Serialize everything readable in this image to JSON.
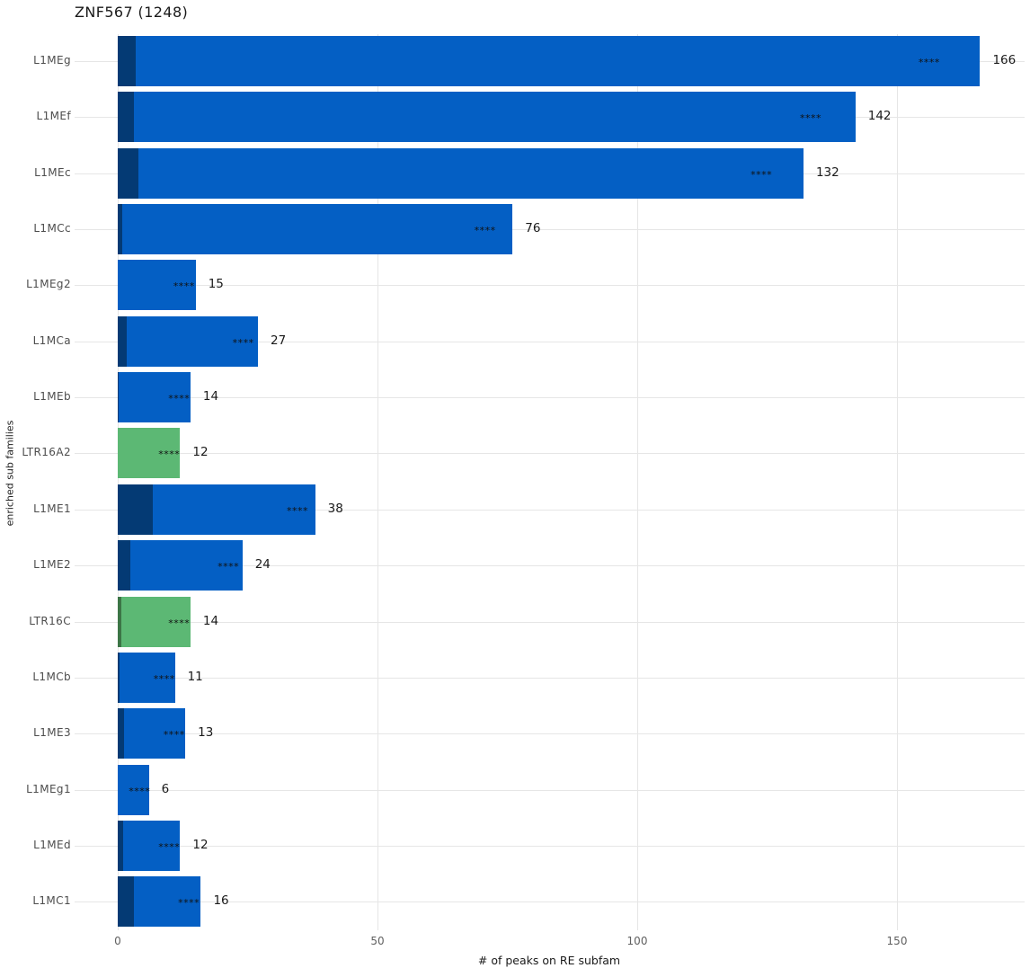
{
  "chart_data": {
    "type": "bar",
    "orientation": "horizontal",
    "title": "ZNF567 (1248)",
    "xlabel": "# of peaks on RE subfam",
    "ylabel": "enriched sub families",
    "xlim": [
      0,
      175
    ],
    "xticks": [
      0,
      50,
      100,
      150
    ],
    "grid": true,
    "legend": "none",
    "significance_marker": "****",
    "categories": [
      "L1MEg",
      "L1MEf",
      "L1MEc",
      "L1MCc",
      "L1MEg2",
      "L1MCa",
      "L1MEb",
      "LTR16A2",
      "L1ME1",
      "L1ME2",
      "LTR16C",
      "L1MCb",
      "L1ME3",
      "L1MEg1",
      "L1MEd",
      "L1MC1"
    ],
    "bars": [
      {
        "label": "L1MEg",
        "value": 166,
        "dark_value": 3.5,
        "color": "blue",
        "sig": "****",
        "value_label": "166"
      },
      {
        "label": "L1MEf",
        "value": 142,
        "dark_value": 3.1,
        "color": "blue",
        "sig": "****",
        "value_label": "142"
      },
      {
        "label": "L1MEc",
        "value": 132,
        "dark_value": 4.0,
        "color": "blue",
        "sig": "****",
        "value_label": "132"
      },
      {
        "label": "L1MCc",
        "value": 76,
        "dark_value": 0.9,
        "color": "blue",
        "sig": "****",
        "value_label": "76"
      },
      {
        "label": "L1MEg2",
        "value": 15,
        "dark_value": 0,
        "color": "blue",
        "sig": "****",
        "value_label": "15"
      },
      {
        "label": "L1MCa",
        "value": 27,
        "dark_value": 1.7,
        "color": "blue",
        "sig": "****",
        "value_label": "27"
      },
      {
        "label": "L1MEb",
        "value": 14,
        "dark_value": 0.25,
        "color": "blue",
        "sig": "****",
        "value_label": "14"
      },
      {
        "label": "LTR16A2",
        "value": 12,
        "dark_value": 0,
        "color": "green",
        "sig": "****",
        "value_label": "12"
      },
      {
        "label": "L1ME1",
        "value": 38,
        "dark_value": 6.7,
        "color": "blue",
        "sig": "****",
        "value_label": "38"
      },
      {
        "label": "L1ME2",
        "value": 24,
        "dark_value": 2.4,
        "color": "blue",
        "sig": "****",
        "value_label": "24"
      },
      {
        "label": "LTR16C",
        "value": 14,
        "dark_value": 0.7,
        "color": "green",
        "sig": "****",
        "value_label": "14"
      },
      {
        "label": "L1MCb",
        "value": 11,
        "dark_value": 0.35,
        "color": "blue",
        "sig": "****",
        "value_label": "11"
      },
      {
        "label": "L1ME3",
        "value": 13,
        "dark_value": 1.2,
        "color": "blue",
        "sig": "****",
        "value_label": "13"
      },
      {
        "label": "L1MEg1",
        "value": 6,
        "dark_value": 0,
        "color": "blue",
        "sig": "****",
        "value_label": "6"
      },
      {
        "label": "L1MEd",
        "value": 12,
        "dark_value": 1.1,
        "color": "blue",
        "sig": "****",
        "value_label": "12"
      },
      {
        "label": "L1MC1",
        "value": 16,
        "dark_value": 3.2,
        "color": "blue",
        "sig": "****",
        "value_label": "16"
      }
    ],
    "colors": {
      "bar_blue": "#045fc4",
      "bar_blue_dark": "#043a74",
      "bar_green": "#5cb874",
      "bar_green_dark": "#3c7546",
      "gridline": "#e6e6e6",
      "tick_label": "#606060",
      "category_label": "#4d4d4d",
      "text": "#1a1a1a"
    }
  }
}
